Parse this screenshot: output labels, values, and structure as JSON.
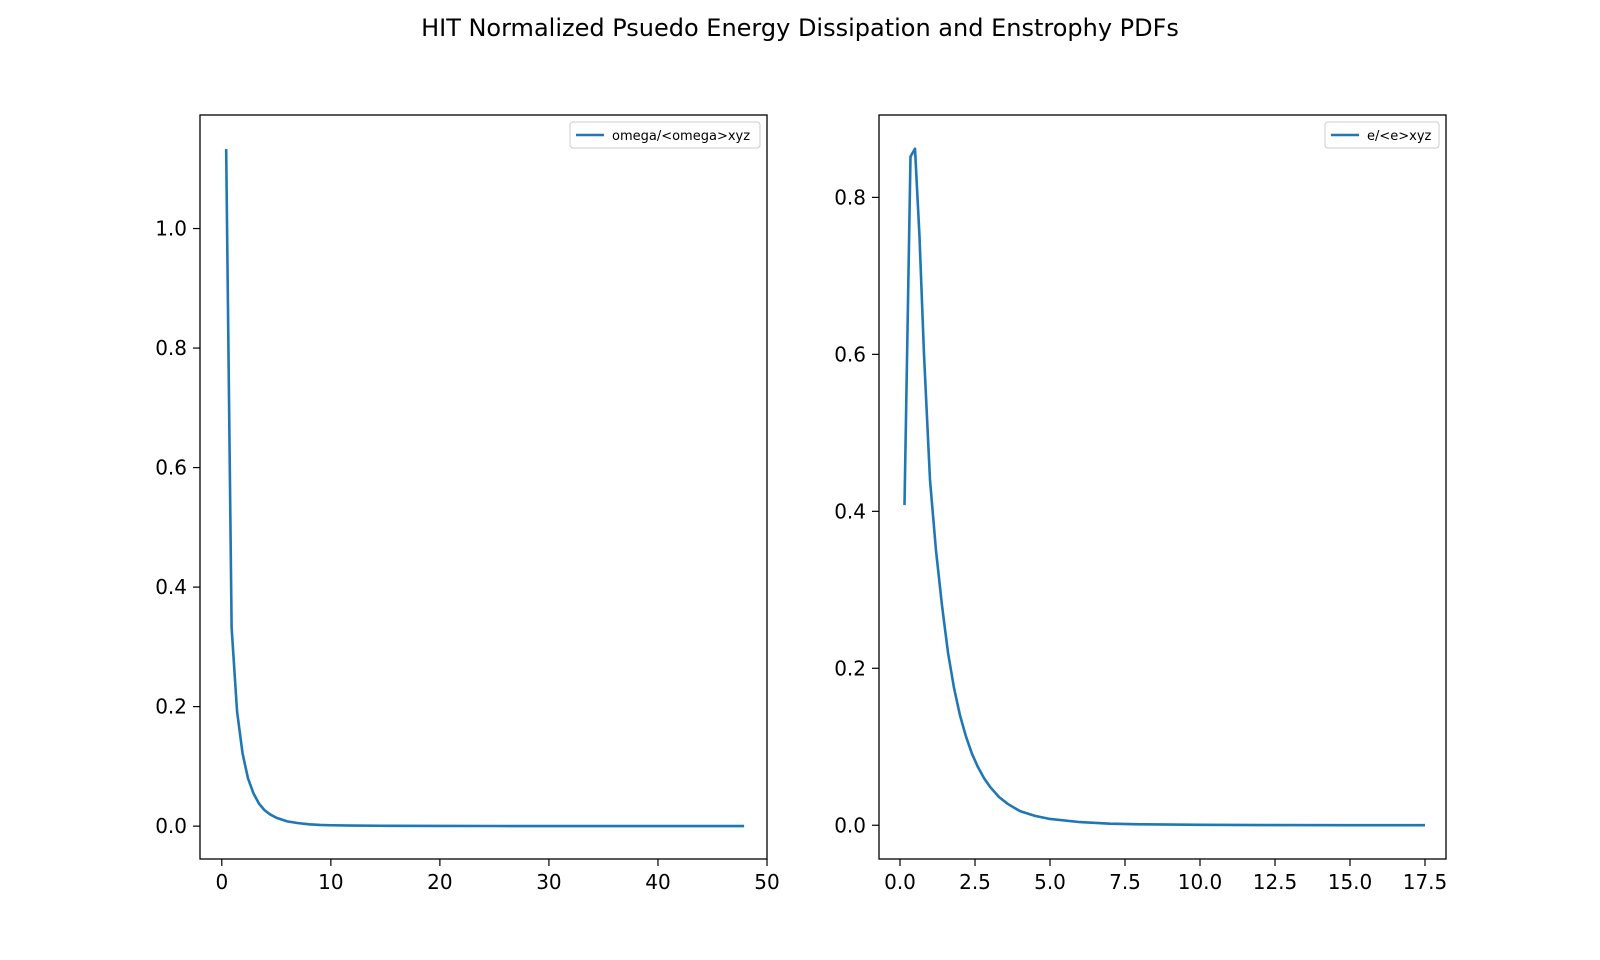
{
  "figure": {
    "title": "HIT Normalized Psuedo Energy Dissipation and Enstrophy PDFs"
  },
  "chart_data": [
    {
      "type": "line",
      "title": "",
      "xlabel": "",
      "ylabel": "",
      "xlim": [
        -2,
        50
      ],
      "ylim": [
        -0.055,
        1.19
      ],
      "xticks": [
        0,
        10,
        20,
        30,
        40,
        50
      ],
      "yticks": [
        0.0,
        0.2,
        0.4,
        0.6,
        0.8,
        1.0
      ],
      "xtick_labels": [
        "0",
        "10",
        "20",
        "30",
        "40",
        "50"
      ],
      "ytick_labels": [
        "0.0",
        "0.2",
        "0.4",
        "0.6",
        "0.8",
        "1.0"
      ],
      "grid": false,
      "legend_position": "top-right",
      "series": [
        {
          "name": "omega/<omega>xyz",
          "color": "#1f77b4",
          "x": [
            0.4,
            0.9,
            1.4,
            1.9,
            2.4,
            2.9,
            3.4,
            3.9,
            4.4,
            5.0,
            6.0,
            7.0,
            8.0,
            9.0,
            10.0,
            12.0,
            15.0,
            20.0,
            25.0,
            30.0,
            35.0,
            40.0,
            45.0,
            47.9
          ],
          "y": [
            1.133,
            0.332,
            0.192,
            0.122,
            0.08,
            0.055,
            0.038,
            0.027,
            0.02,
            0.014,
            0.008,
            0.005,
            0.003,
            0.002,
            0.0015,
            0.001,
            0.0006,
            0.0003,
            0.0002,
            0.0001,
            0.0001,
            0.0001,
            0.0001,
            0.0001
          ]
        }
      ]
    },
    {
      "type": "line",
      "title": "",
      "xlabel": "",
      "ylabel": "",
      "xlim": [
        -0.7,
        18.2
      ],
      "ylim": [
        -0.043,
        0.905
      ],
      "xticks": [
        0.0,
        2.5,
        5.0,
        7.5,
        10.0,
        12.5,
        15.0,
        17.5
      ],
      "yticks": [
        0.0,
        0.2,
        0.4,
        0.6,
        0.8
      ],
      "xtick_labels": [
        "0.0",
        "2.5",
        "5.0",
        "7.5",
        "10.0",
        "12.5",
        "15.0",
        "17.5"
      ],
      "ytick_labels": [
        "0.0",
        "0.2",
        "0.4",
        "0.6",
        "0.8"
      ],
      "grid": false,
      "legend_position": "top-right",
      "series": [
        {
          "name": "e/<e>xyz",
          "color": "#1f77b4",
          "x": [
            0.15,
            0.35,
            0.5,
            0.65,
            0.8,
            1.0,
            1.2,
            1.4,
            1.6,
            1.8,
            2.0,
            2.2,
            2.4,
            2.6,
            2.8,
            3.0,
            3.3,
            3.6,
            4.0,
            4.5,
            5.0,
            6.0,
            7.0,
            8.0,
            10.0,
            12.0,
            15.0,
            17.5
          ],
          "y": [
            0.408,
            0.852,
            0.862,
            0.75,
            0.6,
            0.44,
            0.35,
            0.28,
            0.22,
            0.175,
            0.14,
            0.113,
            0.091,
            0.074,
            0.06,
            0.049,
            0.036,
            0.027,
            0.018,
            0.012,
            0.008,
            0.004,
            0.002,
            0.0012,
            0.0005,
            0.0002,
            0.0001,
            0.0001
          ]
        }
      ]
    }
  ]
}
